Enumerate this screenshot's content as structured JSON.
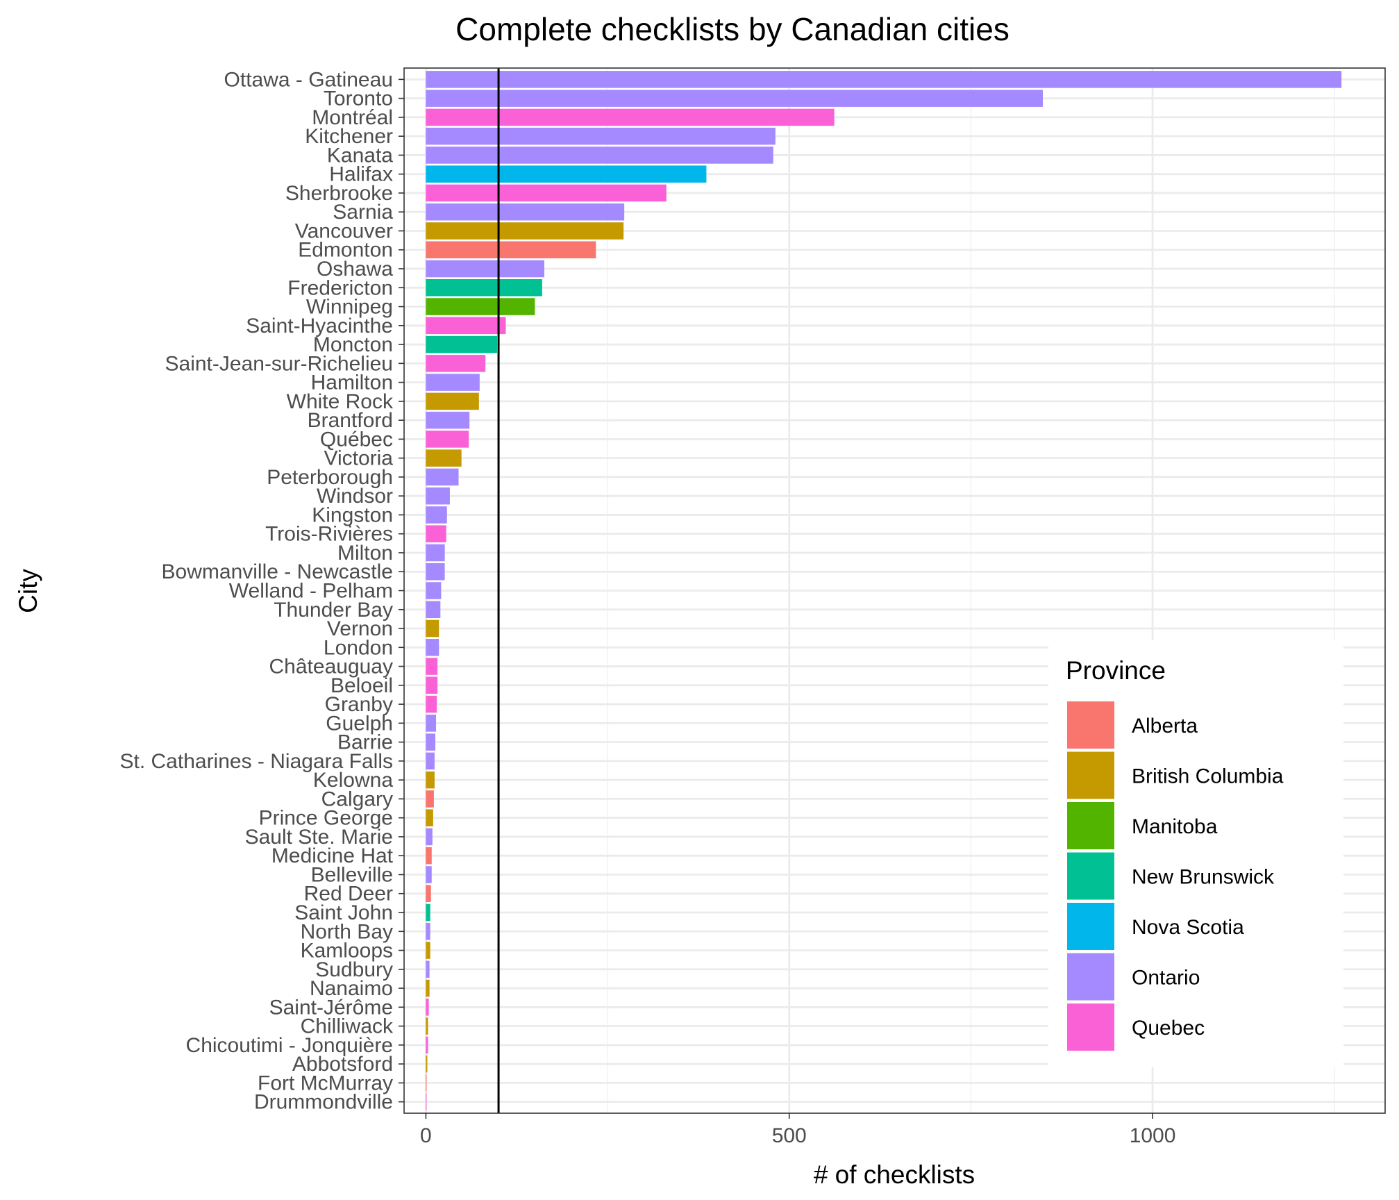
{
  "chart_data": {
    "type": "bar",
    "orientation": "horizontal",
    "title": "Complete checklists by Canadian cities",
    "xlabel": "# of checklists",
    "ylabel": "City",
    "xlim": [
      -30,
      1320
    ],
    "x_ticks": [
      0,
      500,
      1000
    ],
    "grid": true,
    "reference_line": {
      "x": 100,
      "color": "#000000"
    },
    "legend": {
      "title": "Province",
      "position": "right-bottom-inside",
      "entries": [
        {
          "name": "Alberta",
          "color": "#F8766D"
        },
        {
          "name": "British Columbia",
          "color": "#C49A00"
        },
        {
          "name": "Manitoba",
          "color": "#53B400"
        },
        {
          "name": "New Brunswick",
          "color": "#00C094"
        },
        {
          "name": "Nova Scotia",
          "color": "#00B6EB"
        },
        {
          "name": "Ontario",
          "color": "#A58AFF"
        },
        {
          "name": "Quebec",
          "color": "#FB61D7"
        }
      ]
    },
    "categories": [
      "Ottawa - Gatineau",
      "Toronto",
      "Montréal",
      "Kitchener",
      "Kanata",
      "Halifax",
      "Sherbrooke",
      "Sarnia",
      "Vancouver",
      "Edmonton",
      "Oshawa",
      "Fredericton",
      "Winnipeg",
      "Saint-Hyacinthe",
      "Moncton",
      "Saint-Jean-sur-Richelieu",
      "Hamilton",
      "White Rock",
      "Brantford",
      "Québec",
      "Victoria",
      "Peterborough",
      "Windsor",
      "Kingston",
      "Trois-Rivières",
      "Milton",
      "Bowmanville - Newcastle",
      "Welland - Pelham",
      "Thunder Bay",
      "Vernon",
      "London",
      "Châteauguay",
      "Beloeil",
      "Granby",
      "Guelph",
      "Barrie",
      "St. Catharines - Niagara Falls",
      "Kelowna",
      "Calgary",
      "Prince George",
      "Sault Ste. Marie",
      "Medicine Hat",
      "Belleville",
      "Red Deer",
      "Saint John",
      "North Bay",
      "Kamloops",
      "Sudbury",
      "Nanaimo",
      "Saint-Jérôme",
      "Chilliwack",
      "Chicoutimi - Jonquière",
      "Abbotsford",
      "Fort McMurray",
      "Drummondville"
    ],
    "values": [
      1260,
      849,
      562,
      481,
      478,
      386,
      331,
      273,
      272,
      234,
      163,
      160,
      150,
      110,
      98,
      82,
      74,
      73,
      60,
      59,
      49,
      45,
      33,
      29,
      28,
      26,
      26,
      21,
      20,
      18,
      18,
      16,
      16,
      15,
      14,
      13,
      12,
      12,
      11,
      10,
      9,
      8,
      8,
      7,
      6,
      6,
      6,
      5,
      5,
      4,
      3,
      3,
      2,
      1,
      1
    ],
    "provinces": [
      "Ontario",
      "Ontario",
      "Quebec",
      "Ontario",
      "Ontario",
      "Nova Scotia",
      "Quebec",
      "Ontario",
      "British Columbia",
      "Alberta",
      "Ontario",
      "New Brunswick",
      "Manitoba",
      "Quebec",
      "New Brunswick",
      "Quebec",
      "Ontario",
      "British Columbia",
      "Ontario",
      "Quebec",
      "British Columbia",
      "Ontario",
      "Ontario",
      "Ontario",
      "Quebec",
      "Ontario",
      "Ontario",
      "Ontario",
      "Ontario",
      "British Columbia",
      "Ontario",
      "Quebec",
      "Quebec",
      "Quebec",
      "Ontario",
      "Ontario",
      "Ontario",
      "British Columbia",
      "Alberta",
      "British Columbia",
      "Ontario",
      "Alberta",
      "Ontario",
      "Alberta",
      "New Brunswick",
      "Ontario",
      "British Columbia",
      "Ontario",
      "British Columbia",
      "Quebec",
      "British Columbia",
      "Quebec",
      "British Columbia",
      "Alberta",
      "Quebec"
    ]
  }
}
